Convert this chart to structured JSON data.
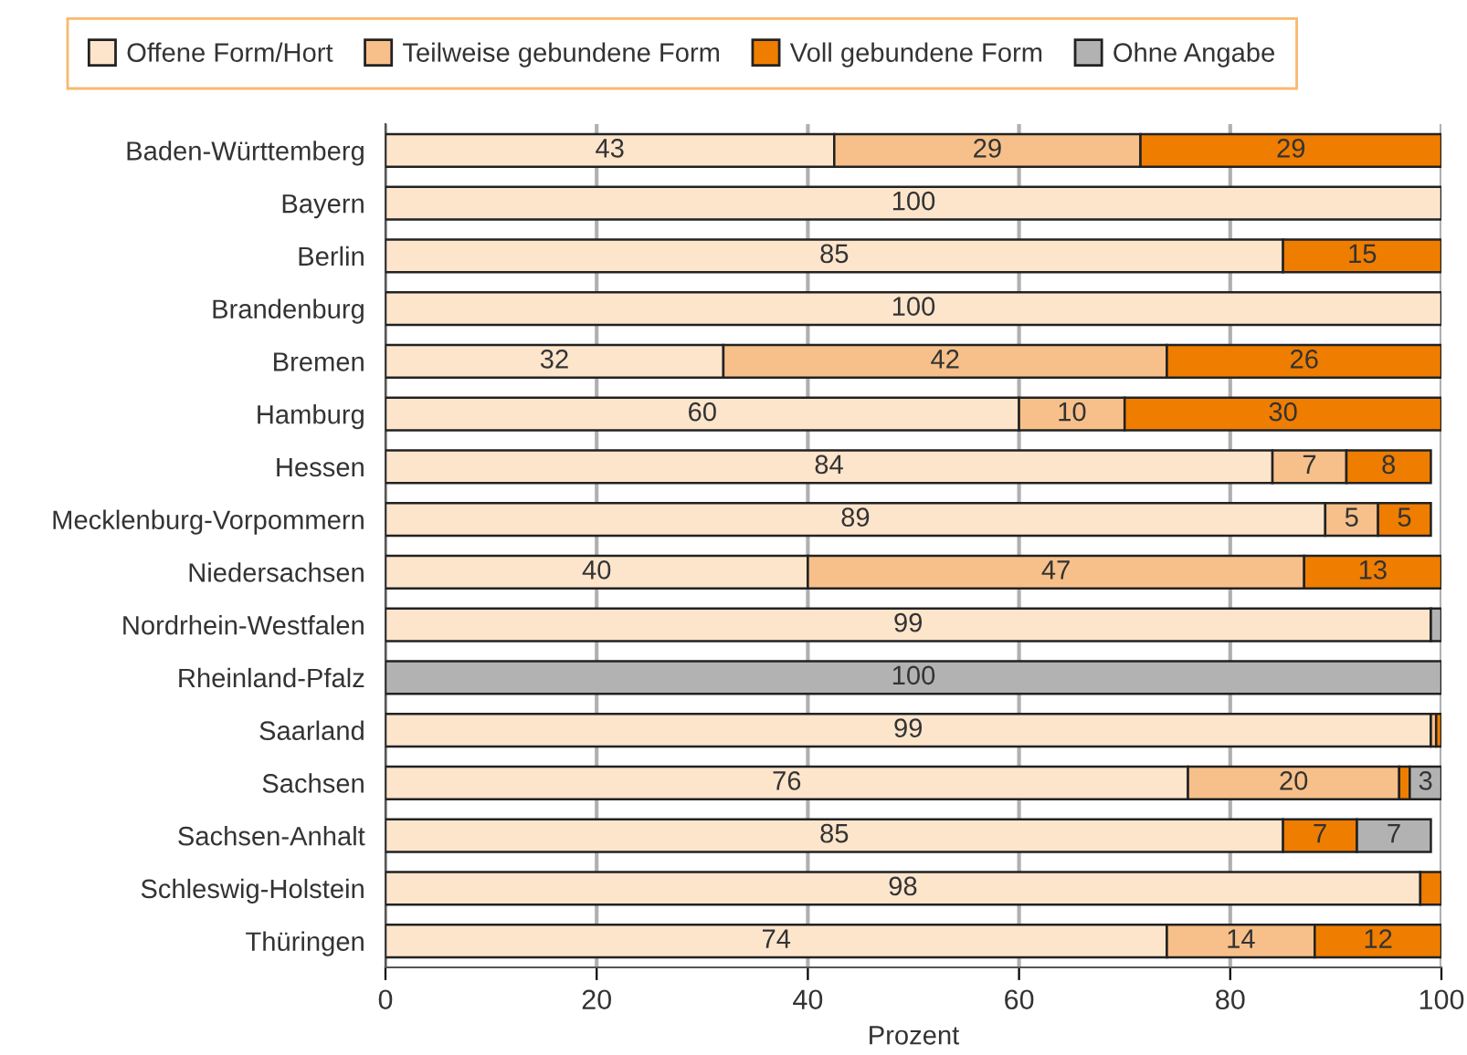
{
  "chart_data": {
    "type": "bar",
    "orientation": "horizontal",
    "stacked": true,
    "xlabel": "Prozent",
    "categories": [
      "Baden-Württemberg",
      "Bayern",
      "Berlin",
      "Brandenburg",
      "Bremen",
      "Hamburg",
      "Hessen",
      "Mecklenburg-Vorpommern",
      "Niedersachsen",
      "Nordrhein-Westfalen",
      "Rheinland-Pfalz",
      "Saarland",
      "Sachsen",
      "Sachsen-Anhalt",
      "Schleswig-Holstein",
      "Thüringen"
    ],
    "series": [
      {
        "name": "Offene Form/Hort",
        "color": "#fde5cc",
        "values": [
          42.5,
          100,
          85,
          100,
          32,
          60,
          84,
          89,
          40,
          99,
          0,
          99,
          76,
          85,
          98,
          74
        ],
        "value_labels": [
          "43",
          "100",
          "85",
          "100",
          "32",
          "60",
          "84",
          "89",
          "40",
          "99",
          null,
          "99",
          "76",
          "85",
          "98",
          "74"
        ]
      },
      {
        "name": "Teilweise gebundene Form",
        "color": "#f7c08a",
        "values": [
          29,
          0,
          0,
          0,
          42,
          10,
          7,
          5,
          47,
          0,
          0,
          0.5,
          20,
          0,
          0,
          14
        ],
        "value_labels": [
          "29",
          null,
          null,
          null,
          "42",
          "10",
          "7",
          "5",
          "47",
          null,
          null,
          null,
          "20",
          null,
          null,
          "14"
        ]
      },
      {
        "name": "Voll gebundene Form",
        "color": "#ef7d00",
        "values": [
          28.5,
          0,
          15,
          0,
          26,
          30,
          8,
          5,
          13,
          0,
          0,
          0.5,
          1,
          7,
          2,
          12
        ],
        "value_labels": [
          "29",
          null,
          "15",
          null,
          "26",
          "30",
          "8",
          "5",
          "13",
          null,
          null,
          null,
          null,
          "7",
          null,
          "12"
        ]
      },
      {
        "name": "Ohne Angabe",
        "color": "#b2b2b2",
        "values": [
          0,
          0,
          0,
          0,
          0,
          0,
          0,
          0,
          0,
          1,
          100,
          0,
          3,
          7,
          0,
          0
        ],
        "value_labels": [
          null,
          null,
          null,
          null,
          null,
          null,
          null,
          null,
          null,
          null,
          "100",
          null,
          "3",
          "7",
          null,
          null
        ]
      }
    ],
    "xlim": [
      0,
      100
    ],
    "xticks": [
      0,
      20,
      40,
      60,
      80,
      100
    ],
    "grid": "x",
    "legend": "top"
  }
}
